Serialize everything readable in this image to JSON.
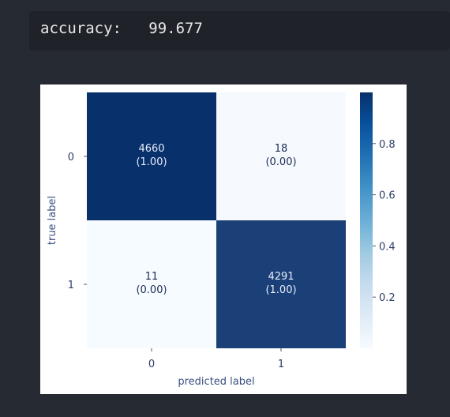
{
  "output": {
    "text": "accuracy:   99.677"
  },
  "chart_data": {
    "type": "heatmap",
    "title": "",
    "xlabel": "predicted label",
    "ylabel": "true label",
    "x_tick_labels": [
      "0",
      "1"
    ],
    "y_tick_labels": [
      "0",
      "1"
    ],
    "values": [
      [
        4660,
        18
      ],
      [
        11,
        4291
      ]
    ],
    "normalized": [
      [
        1.0,
        0.0
      ],
      [
        0.0,
        1.0
      ]
    ],
    "cell_labels": [
      [
        "4660\n(1.00)",
        "18\n(0.00)"
      ],
      [
        "11\n(0.00)",
        "4291\n(1.00)"
      ]
    ],
    "colormap": "Blues",
    "color_low": "#f7fbff",
    "color_high": "#08306b",
    "colorbar": {
      "range": [
        0,
        1
      ],
      "ticks": [
        0.2,
        0.4,
        0.6,
        0.8
      ],
      "tick_labels": [
        "0.2",
        "0.4",
        "0.6",
        "0.8"
      ]
    }
  }
}
